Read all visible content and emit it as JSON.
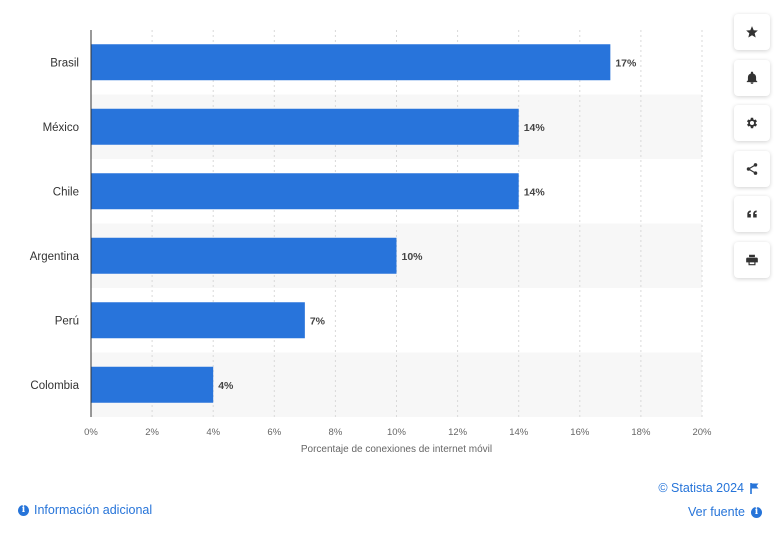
{
  "chart_data": {
    "type": "bar",
    "orientation": "horizontal",
    "categories": [
      "Brasil",
      "México",
      "Chile",
      "Argentina",
      "Perú",
      "Colombia"
    ],
    "values": [
      17,
      14,
      14,
      10,
      7,
      4
    ],
    "value_labels": [
      "17%",
      "14%",
      "14%",
      "10%",
      "7%",
      "4%"
    ],
    "xlabel": "Porcentaje de conexiones de internet móvil",
    "ylabel": "",
    "xlim": [
      0,
      20
    ],
    "xticks": [
      "0%",
      "2%",
      "4%",
      "6%",
      "8%",
      "10%",
      "12%",
      "14%",
      "16%",
      "18%",
      "20%"
    ],
    "grid": true,
    "bar_color": "#2874db"
  },
  "sidebar": {
    "buttons": [
      {
        "name": "favorite",
        "icon": "star-icon"
      },
      {
        "name": "notifications",
        "icon": "bell-icon"
      },
      {
        "name": "settings",
        "icon": "gear-icon"
      },
      {
        "name": "share",
        "icon": "share-icon"
      },
      {
        "name": "cite",
        "icon": "quote-icon"
      },
      {
        "name": "print",
        "icon": "printer-icon"
      }
    ]
  },
  "footer": {
    "additional_info": "Información adicional",
    "copyright": "© Statista 2024",
    "source": "Ver fuente"
  },
  "colors": {
    "accent": "#2674d9"
  }
}
